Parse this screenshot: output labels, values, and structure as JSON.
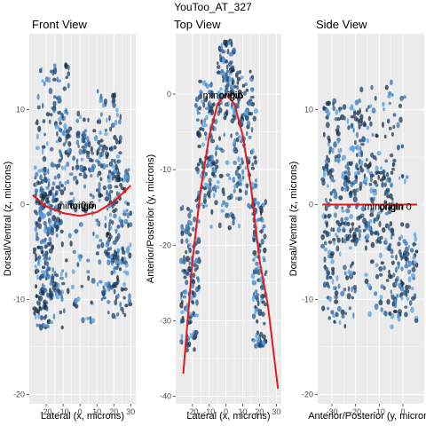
{
  "figure": {
    "title": "YouToo_AT_327",
    "point_colors": [
      "#132b43",
      "#1d3f63",
      "#2a5a8c",
      "#3a78b8",
      "#56a0e0"
    ],
    "panel_background": "#ebebeb",
    "grid_color": "#ffffff",
    "fit_color": "#e41a1c"
  },
  "chart_data": [
    {
      "type": "scatter",
      "title": "Front View",
      "xlabel": "Lateral (x, microns)",
      "ylabel": "Dorsal/Ventral (z, microns)",
      "xlim": [
        -30,
        33
      ],
      "ylim": [
        -21,
        18
      ],
      "xticks": [
        -20,
        -10,
        0,
        10,
        20,
        30
      ],
      "yticks": [
        -20,
        -10,
        0,
        10
      ],
      "annotations": [
        {
          "x": -2,
          "y": -0.1,
          "text": "minorigin"
        },
        {
          "x": 1,
          "y": -0.1,
          "text": "origin"
        },
        {
          "x": 4.5,
          "y": 0,
          "text": "0.6"
        }
      ],
      "fit": {
        "x": [
          -28,
          -20,
          -10,
          0,
          10,
          20,
          30
        ],
        "y": [
          1.0,
          -0.2,
          -0.9,
          -1.2,
          -0.8,
          0.3,
          2.0
        ]
      },
      "clusters": [
        {
          "x": [
            -27,
            -18
          ],
          "y": [
            -13,
            4
          ],
          "n": 140
        },
        {
          "x": [
            -24,
            -10
          ],
          "y": [
            -11,
            3
          ],
          "n": 100
        },
        {
          "x": [
            -18,
            8
          ],
          "y": [
            -13,
            11
          ],
          "n": 110
        },
        {
          "x": [
            -26,
            -6
          ],
          "y": [
            4,
            15
          ],
          "n": 70
        },
        {
          "x": [
            16,
            30
          ],
          "y": [
            -12,
            4
          ],
          "n": 130
        },
        {
          "x": [
            10,
            24
          ],
          "y": [
            -10,
            6
          ],
          "n": 90
        },
        {
          "x": [
            10,
            24
          ],
          "y": [
            5,
            12
          ],
          "n": 50
        },
        {
          "x": [
            -14,
            10
          ],
          "y": [
            3,
            8
          ],
          "n": 60
        }
      ]
    },
    {
      "type": "scatter",
      "title": "Top View",
      "xlabel": "Lateral (x, microns)",
      "ylabel": "Anterior/Posterior (y, microns)",
      "xlim": [
        -30,
        33
      ],
      "ylim": [
        -41,
        8
      ],
      "xticks": [
        -20,
        -10,
        0,
        10,
        20,
        30
      ],
      "yticks": [
        -40,
        -30,
        -20,
        -10,
        0
      ],
      "annotations": [
        {
          "x": -2,
          "y": -0.1,
          "text": "minorigin"
        },
        {
          "x": 3,
          "y": -0.1,
          "text": "origin"
        },
        {
          "x": 6.5,
          "y": -0.1,
          "text": "0.6"
        }
      ],
      "fit": {
        "x": [
          -25.5,
          -20,
          -15,
          -10,
          -5,
          0,
          5,
          10,
          15,
          20,
          25,
          31
        ],
        "y": [
          -37,
          -22,
          -12.5,
          -5.5,
          -1.3,
          0,
          -1.3,
          -5.5,
          -12.5,
          -22,
          -28,
          -39
        ]
      },
      "clusters": [
        {
          "x": [
            -27,
            -16
          ],
          "y": [
            -34,
            -15
          ],
          "n": 120
        },
        {
          "x": [
            -18,
            -5
          ],
          "y": [
            -15,
            2
          ],
          "n": 110
        },
        {
          "x": [
            -5,
            5
          ],
          "y": [
            -3,
            7
          ],
          "n": 90
        },
        {
          "x": [
            5,
            18
          ],
          "y": [
            -15,
            3
          ],
          "n": 110
        },
        {
          "x": [
            16,
            24
          ],
          "y": [
            -34,
            -14
          ],
          "n": 110
        },
        {
          "x": [
            -10,
            10
          ],
          "y": [
            -18,
            -2
          ],
          "n": 60
        }
      ]
    },
    {
      "type": "scatter",
      "title": "Side View",
      "xlabel": "Anterior/Posterior (y, microns",
      "ylabel": "Dorsal/Ventral (z, microns)",
      "xlim": [
        -36,
        9
      ],
      "ylim": [
        -21,
        18
      ],
      "xticks": [
        -30,
        -20,
        -10,
        0
      ],
      "yticks": [
        -20,
        -10,
        0,
        10
      ],
      "annotations": [
        {
          "x": -8,
          "y": -0.2,
          "text": "minorigin"
        },
        {
          "x": -5,
          "y": -0.2,
          "text": "origin"
        },
        {
          "x": 2.5,
          "y": -0.2,
          "text": "0"
        }
      ],
      "fit": {
        "x": [
          -34,
          6
        ],
        "y": [
          0,
          0
        ]
      },
      "clusters": [
        {
          "x": [
            -34,
            -4
          ],
          "y": [
            -4,
            4
          ],
          "n": 200
        },
        {
          "x": [
            -34,
            -15
          ],
          "y": [
            3,
            11
          ],
          "n": 90
        },
        {
          "x": [
            -20,
            2
          ],
          "y": [
            2,
            13
          ],
          "n": 80
        },
        {
          "x": [
            -34,
            -20
          ],
          "y": [
            -13,
            -3
          ],
          "n": 80
        },
        {
          "x": [
            -16,
            6
          ],
          "y": [
            -12,
            -2
          ],
          "n": 90
        },
        {
          "x": [
            -5,
            6
          ],
          "y": [
            -13,
            -4
          ],
          "n": 50
        }
      ]
    }
  ]
}
